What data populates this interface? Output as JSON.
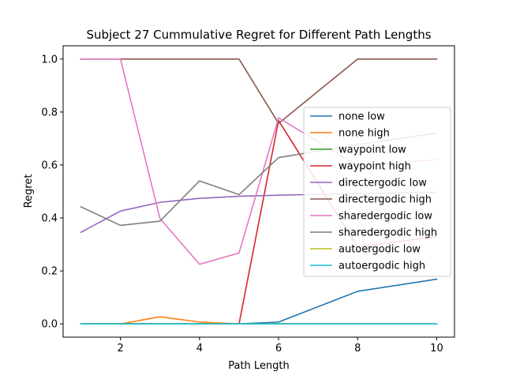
{
  "chart_data": {
    "type": "line",
    "title": "Subject 27 Cummulative Regret for Different Path Lengths",
    "xlabel": "Path Length",
    "ylabel": "Regret",
    "x": [
      1,
      2,
      3,
      4,
      5,
      6,
      8,
      10
    ],
    "xlim": [
      0.55,
      10.45
    ],
    "ylim": [
      -0.05,
      1.05
    ],
    "xticks": [
      2,
      4,
      6,
      8,
      10
    ],
    "yticks": [
      0.0,
      0.2,
      0.4,
      0.6,
      0.8,
      1.0
    ],
    "xtick_labels": [
      "2",
      "4",
      "6",
      "8",
      "10"
    ],
    "ytick_labels": [
      "0.0",
      "0.2",
      "0.4",
      "0.6",
      "0.8",
      "1.0"
    ],
    "grid": false,
    "legend_position": "center-right",
    "series": [
      {
        "name": "none low",
        "color": "#1f77b4",
        "values": [
          0,
          0,
          0,
          0,
          0,
          0.007,
          0.123,
          0.169
        ]
      },
      {
        "name": "none high",
        "color": "#ff7f0e",
        "values": [
          0,
          0,
          0.027,
          0.007,
          0,
          0,
          0,
          0
        ]
      },
      {
        "name": "waypoint low",
        "color": "#2ca02c",
        "values": [
          0,
          0,
          0,
          0,
          0,
          0,
          0,
          0
        ]
      },
      {
        "name": "waypoint high",
        "color": "#d62728",
        "values": [
          0,
          0,
          0,
          0,
          0,
          0.768,
          0.29,
          0.33
        ]
      },
      {
        "name": "directergodic low",
        "color": "#9467bd",
        "values": [
          0.346,
          0.426,
          0.459,
          0.474,
          0.482,
          0.486,
          0.492,
          0.497
        ]
      },
      {
        "name": "directergodic high",
        "color": "#8c564b",
        "values": [
          1.0,
          1.0,
          1.0,
          1.0,
          1.0,
          0.757,
          1.0,
          1.0
        ]
      },
      {
        "name": "sharedergodic low",
        "color": "#e377c2",
        "values": [
          1.0,
          1.0,
          0.398,
          0.225,
          0.268,
          0.778,
          0.597,
          0.62
        ]
      },
      {
        "name": "sharedergodic high",
        "color": "#7f7f7f",
        "values": [
          0.442,
          0.372,
          0.388,
          0.54,
          0.488,
          0.628,
          0.677,
          0.72
        ]
      },
      {
        "name": "autoergodic low",
        "color": "#bcbd22",
        "values": [
          0,
          0,
          0,
          0,
          0,
          0,
          0,
          0
        ]
      },
      {
        "name": "autoergodic high",
        "color": "#17becf",
        "values": [
          0,
          0,
          0,
          0,
          0,
          0,
          0,
          0
        ]
      }
    ]
  }
}
